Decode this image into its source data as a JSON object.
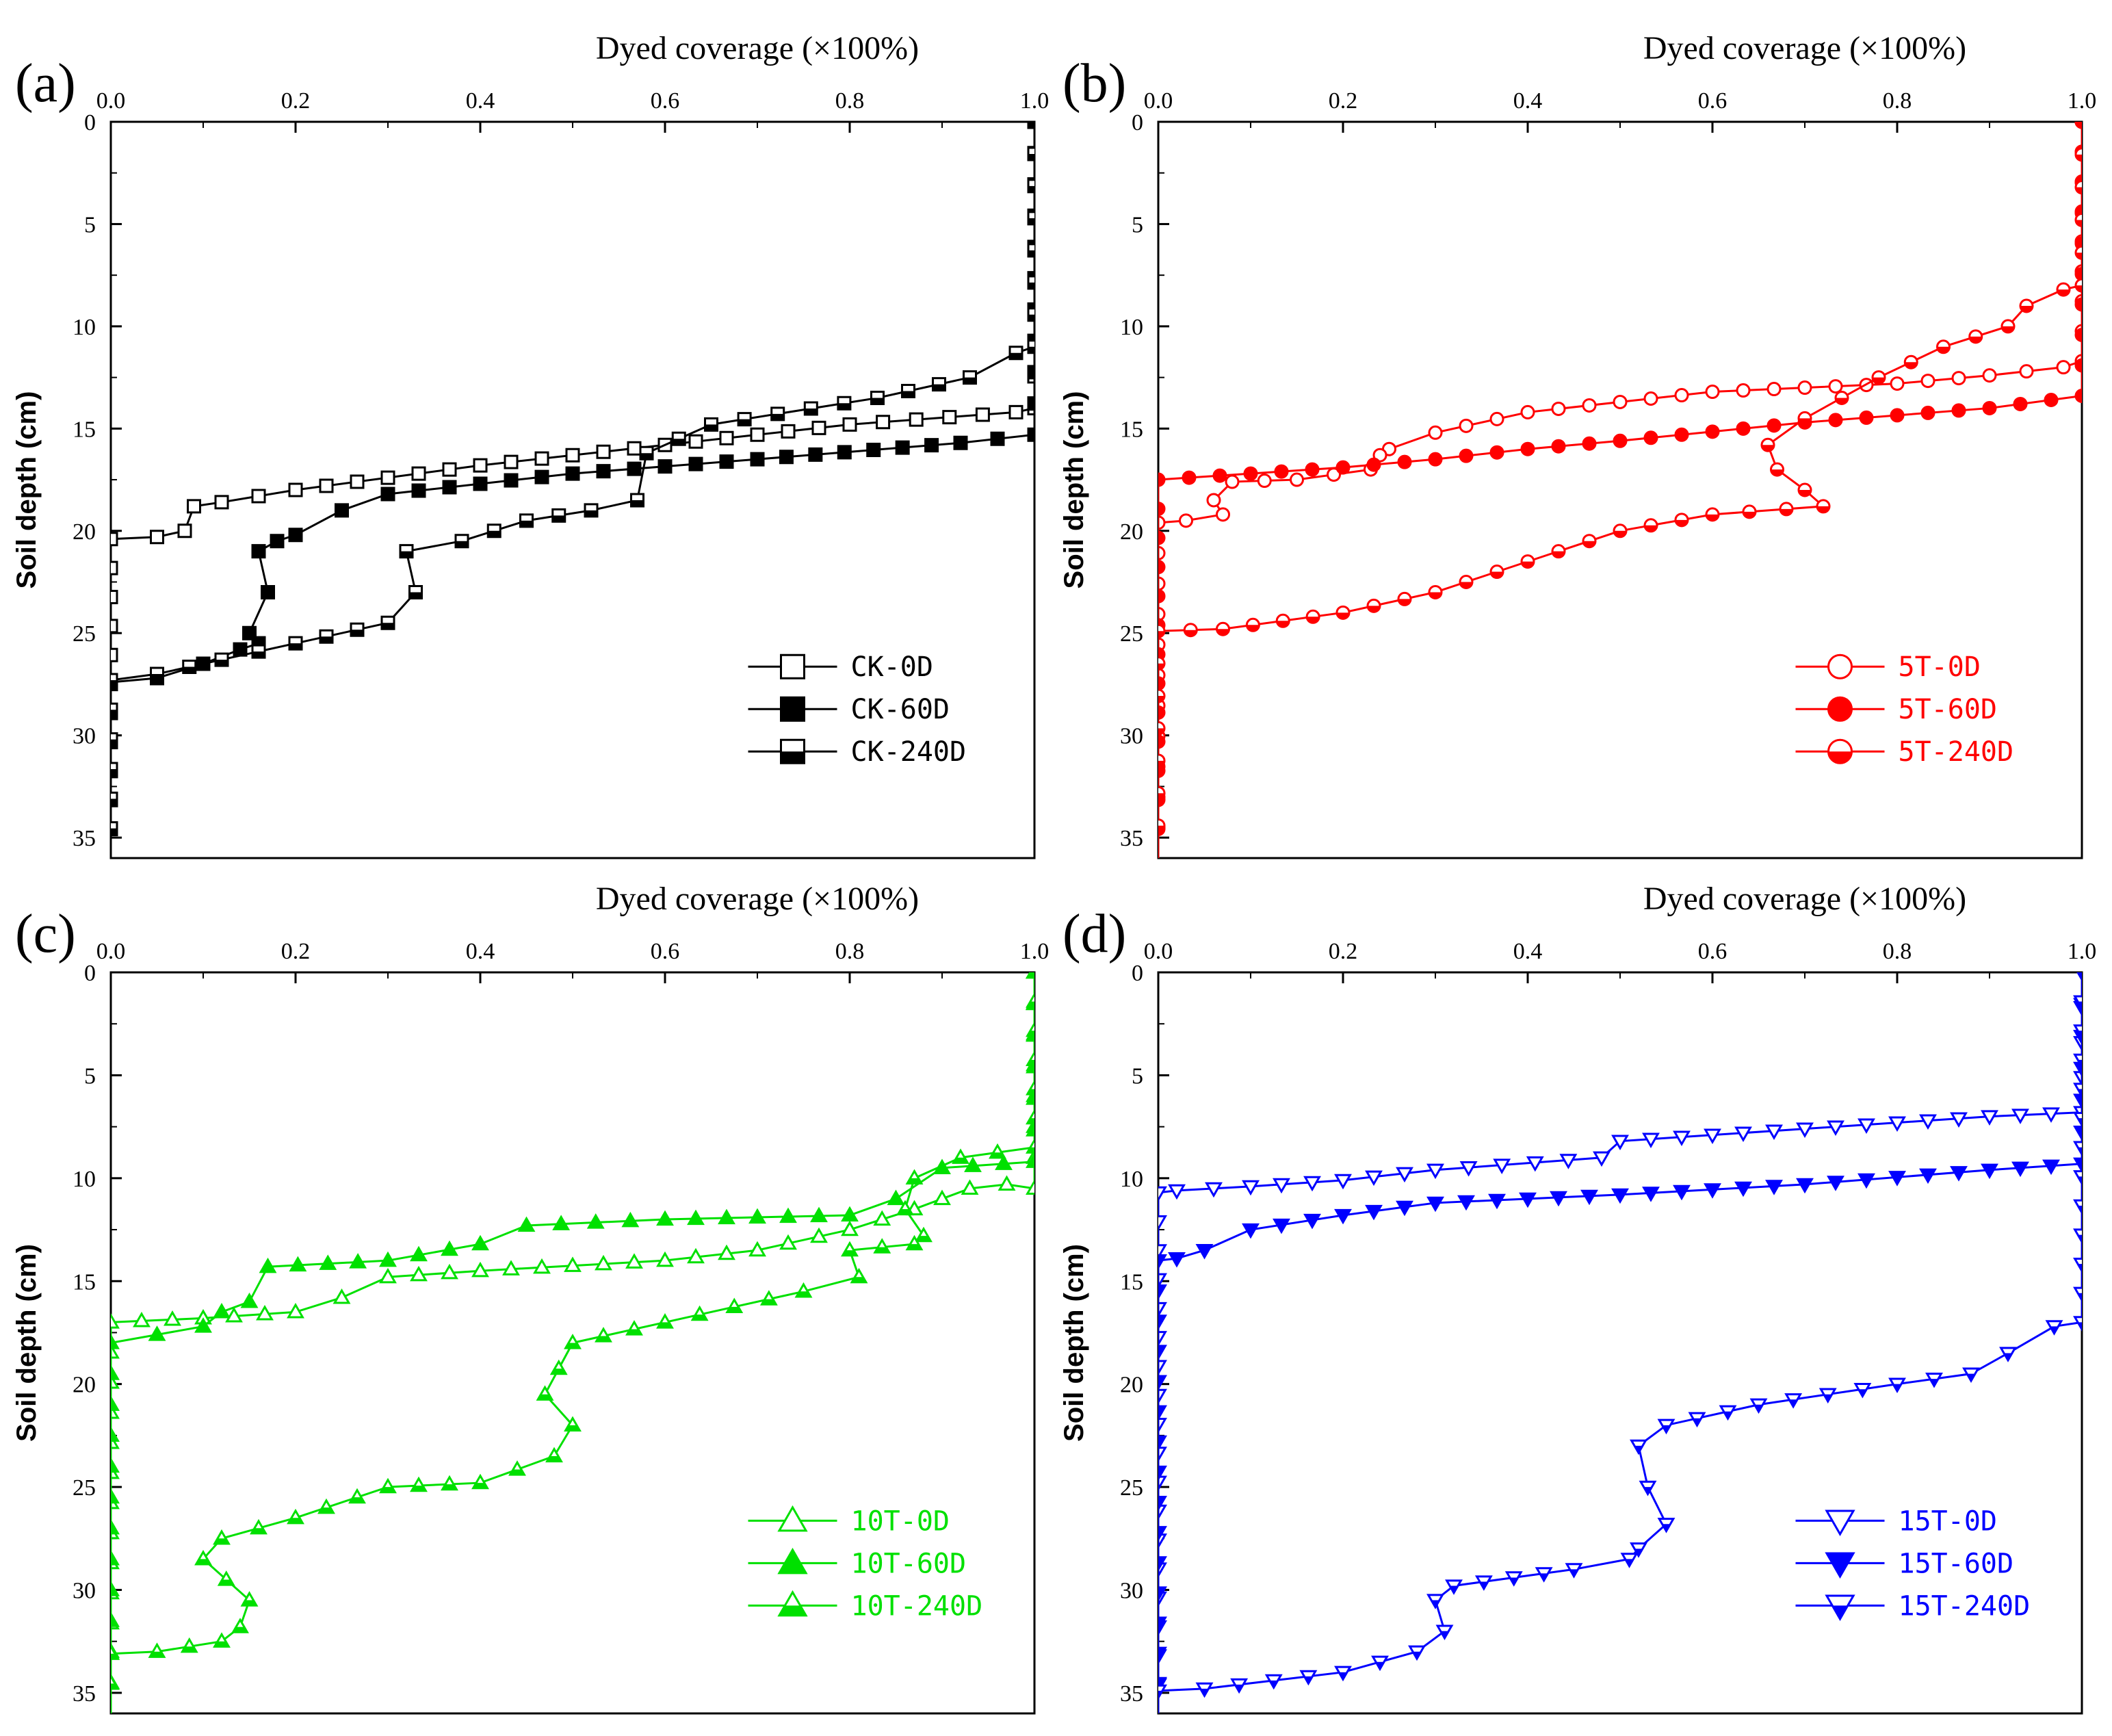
{
  "chart_data": [
    {
      "type": "line",
      "panel_label": "(a)",
      "title": "",
      "xlabel": "Dyed coverage (×100%)",
      "ylabel": "Soil depth (cm)",
      "xlim": [
        0,
        1
      ],
      "ylim": [
        0,
        36
      ],
      "x_ticks": [
        "0.0",
        "0.2",
        "0.4",
        "0.6",
        "0.8",
        "1.0"
      ],
      "y_ticks": [
        "0",
        "5",
        "10",
        "15",
        "20",
        "25",
        "30",
        "35"
      ],
      "color": "#000000",
      "legend_position": "bottom-right",
      "series": [
        {
          "name": "CK-0D",
          "marker": "square-open",
          "x": [
            1.0,
            1.0,
            0.98,
            0.8,
            0.6,
            0.4,
            0.2,
            0.12,
            0.09,
            0.08,
            0.05,
            0.0,
            0.0
          ],
          "y": [
            0,
            14,
            14.2,
            14.8,
            15.8,
            16.8,
            18,
            18.6,
            18.8,
            20,
            20.3,
            20.4,
            36
          ]
        },
        {
          "name": "CK-60D",
          "marker": "square-filled",
          "x": [
            1.0,
            1.0,
            0.92,
            0.7,
            0.5,
            0.3,
            0.25,
            0.2,
            0.18,
            0.16,
            0.17,
            0.15,
            0.16,
            0.14,
            0.1,
            0.05,
            0.0,
            0.0
          ],
          "y": [
            0,
            15.3,
            15.7,
            16.5,
            17.2,
            18.2,
            19,
            20.2,
            20.5,
            21,
            23,
            25,
            25.5,
            25.8,
            26.5,
            27.2,
            27.4,
            36
          ]
        },
        {
          "name": "CK-240D",
          "marker": "square-half",
          "x": [
            1.0,
            1.0,
            0.98,
            0.93,
            0.83,
            0.65,
            0.58,
            0.57,
            0.52,
            0.45,
            0.38,
            0.32,
            0.33,
            0.3,
            0.2,
            0.12,
            0.05,
            0.0,
            0.0
          ],
          "y": [
            0,
            11,
            11.3,
            12.5,
            13.5,
            14.8,
            16.2,
            18.5,
            19,
            19.5,
            20.5,
            21,
            23,
            24.5,
            25.5,
            26.3,
            27,
            27.3,
            36
          ]
        }
      ]
    },
    {
      "type": "line",
      "panel_label": "(b)",
      "title": "",
      "xlabel": "Dyed coverage (×100%)",
      "ylabel": "Soil depth (cm)",
      "xlim": [
        0,
        1
      ],
      "ylim": [
        0,
        36
      ],
      "x_ticks": [
        "0.0",
        "0.2",
        "0.4",
        "0.6",
        "0.8",
        "1.0"
      ],
      "y_ticks": [
        "0",
        "5",
        "10",
        "15",
        "20",
        "25",
        "30",
        "35"
      ],
      "color": "#ff0000",
      "legend_position": "bottom-right",
      "series": [
        {
          "name": "5T-0D",
          "marker": "circle-open",
          "x": [
            1.0,
            1.0,
            0.98,
            0.9,
            0.8,
            0.6,
            0.4,
            0.3,
            0.25,
            0.24,
            0.23,
            0.15,
            0.08,
            0.06,
            0.07,
            0.03,
            0.0,
            0.0
          ],
          "y": [
            0,
            11.7,
            12,
            12.4,
            12.8,
            13.2,
            14.2,
            15.2,
            16,
            16.3,
            17,
            17.5,
            17.6,
            18.5,
            19.2,
            19.5,
            19.6,
            36
          ]
        },
        {
          "name": "5T-60D",
          "marker": "circle-filled",
          "x": [
            1.0,
            1.0,
            0.9,
            0.7,
            0.5,
            0.4,
            0.3,
            0.2,
            0.1,
            0.0,
            0.0
          ],
          "y": [
            0,
            13.4,
            14,
            14.7,
            15.6,
            16,
            16.5,
            16.9,
            17.2,
            17.5,
            36
          ]
        },
        {
          "name": "5T-240D",
          "marker": "circle-half",
          "x": [
            1.0,
            1.0,
            0.98,
            0.94,
            0.92,
            0.85,
            0.78,
            0.7,
            0.66,
            0.67,
            0.7,
            0.72,
            0.6,
            0.5,
            0.4,
            0.3,
            0.2,
            0.07,
            0.0,
            0.0
          ],
          "y": [
            0,
            8,
            8.2,
            9,
            10,
            11,
            12.5,
            14.5,
            15.8,
            17,
            18,
            18.8,
            19.2,
            20,
            21.5,
            23,
            24,
            24.8,
            24.9,
            36
          ]
        }
      ]
    },
    {
      "type": "line",
      "panel_label": "(c)",
      "title": "",
      "xlabel": "Dyed coverage (×100%)",
      "ylabel": "Soil depth (cm)",
      "xlim": [
        0,
        1
      ],
      "ylim": [
        0,
        36
      ],
      "x_ticks": [
        "0.0",
        "0.2",
        "0.4",
        "0.6",
        "0.8",
        "1.0"
      ],
      "y_ticks": [
        "0",
        "5",
        "10",
        "15",
        "20",
        "25",
        "30",
        "35"
      ],
      "color": "#00e000",
      "legend_position": "bottom-right",
      "series": [
        {
          "name": "10T-0D",
          "marker": "triangle-open",
          "x": [
            1.0,
            1.0,
            0.97,
            0.93,
            0.87,
            0.8,
            0.7,
            0.6,
            0.4,
            0.3,
            0.25,
            0.2,
            0.1,
            0.0,
            0.0
          ],
          "y": [
            0,
            10.5,
            10.3,
            10.5,
            11.5,
            12.5,
            13.5,
            14,
            14.5,
            14.8,
            15.8,
            16.5,
            16.8,
            17,
            36
          ]
        },
        {
          "name": "10T-60D",
          "marker": "triangle-filled",
          "x": [
            1.0,
            1.0,
            0.9,
            0.85,
            0.8,
            0.6,
            0.45,
            0.4,
            0.3,
            0.17,
            0.15,
            0.12,
            0.1,
            0.05,
            0.0,
            0.0
          ],
          "y": [
            0,
            9.2,
            9.5,
            11,
            11.8,
            12,
            12.3,
            13.2,
            14,
            14.3,
            16,
            16.5,
            17.2,
            17.6,
            18,
            36
          ]
        },
        {
          "name": "10T-240D",
          "marker": "triangle-half",
          "x": [
            1.0,
            1.0,
            0.92,
            0.87,
            0.86,
            0.88,
            0.87,
            0.8,
            0.81,
            0.75,
            0.6,
            0.5,
            0.47,
            0.5,
            0.48,
            0.4,
            0.3,
            0.2,
            0.12,
            0.1,
            0.15,
            0.14,
            0.12,
            0.05,
            0.0,
            0.0
          ],
          "y": [
            0,
            8.5,
            9,
            10,
            11.5,
            12.8,
            13.2,
            13.5,
            14.8,
            15.5,
            17,
            18,
            20.5,
            22,
            23.5,
            24.8,
            25,
            26.5,
            27.5,
            28.5,
            30.5,
            31.8,
            32.5,
            33,
            33.1,
            36
          ]
        }
      ]
    },
    {
      "type": "line",
      "panel_label": "(d)",
      "title": "",
      "xlabel": "Dyed coverage (×100%)",
      "ylabel": "Soil depth (cm)",
      "xlim": [
        0,
        1
      ],
      "ylim": [
        0,
        36
      ],
      "x_ticks": [
        "0.0",
        "0.2",
        "0.4",
        "0.6",
        "0.8",
        "1.0"
      ],
      "y_ticks": [
        "0",
        "5",
        "10",
        "15",
        "20",
        "25",
        "30",
        "35"
      ],
      "color": "#0000ff",
      "legend_position": "bottom-right",
      "series": [
        {
          "name": "15T-0D",
          "marker": "triangle-down-open",
          "x": [
            1.0,
            1.0,
            0.9,
            0.7,
            0.5,
            0.48,
            0.3,
            0.2,
            0.1,
            0.02,
            0.0,
            0.0
          ],
          "y": [
            0,
            6.8,
            7,
            7.6,
            8.2,
            9,
            9.6,
            10.1,
            10.4,
            10.6,
            10.7,
            36
          ]
        },
        {
          "name": "15T-60D",
          "marker": "triangle-down-filled",
          "x": [
            1.0,
            1.0,
            0.9,
            0.7,
            0.5,
            0.3,
            0.2,
            0.1,
            0.05,
            0.02,
            0.0,
            0.0
          ],
          "y": [
            0,
            9.3,
            9.6,
            10.3,
            10.8,
            11.2,
            11.8,
            12.5,
            13.5,
            13.9,
            14,
            36
          ]
        },
        {
          "name": "15T-240D",
          "marker": "triangle-down-half",
          "x": [
            1.0,
            1.0,
            0.97,
            0.92,
            0.88,
            0.8,
            0.65,
            0.55,
            0.52,
            0.53,
            0.55,
            0.52,
            0.51,
            0.45,
            0.32,
            0.3,
            0.31,
            0.28,
            0.2,
            0.05,
            0.0,
            0.0
          ],
          "y": [
            0,
            17,
            17.2,
            18.5,
            19.5,
            20,
            21,
            22,
            23,
            25,
            26.8,
            28,
            28.5,
            29,
            29.8,
            30.5,
            32,
            33,
            34,
            34.8,
            34.9,
            36
          ]
        }
      ]
    }
  ]
}
